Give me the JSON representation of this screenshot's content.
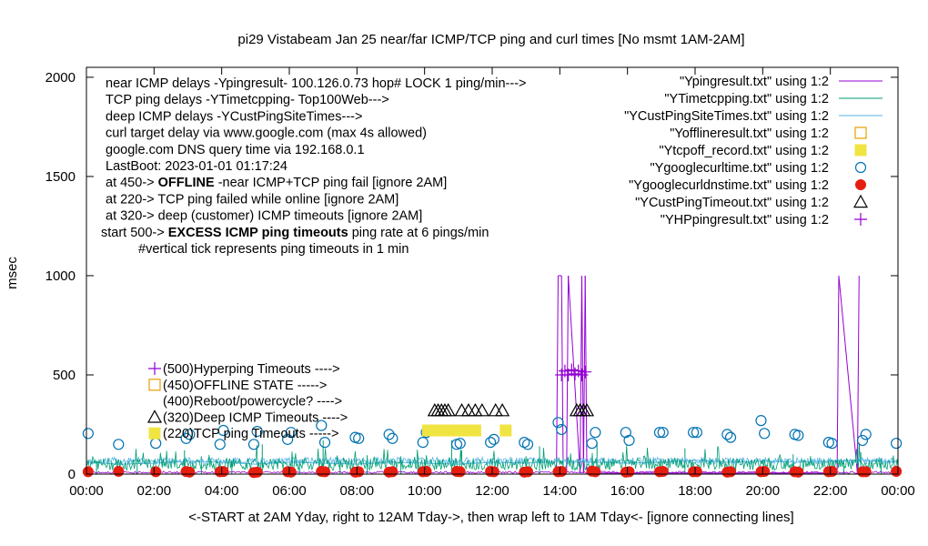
{
  "chart_data": {
    "type": "scatter",
    "title": "pi29 Vistabeam Jan 25  near/far ICMP/TCP ping and curl times [No msmt 1AM-2AM]",
    "xlabel": "<-START at 2AM Yday, right to 12AM Tday->, then wrap left to 1AM Tday<- [ignore connecting lines]",
    "ylabel": "msec",
    "xlim": [
      0,
      24
    ],
    "ylim": [
      0,
      2050
    ],
    "grid": false,
    "legend_position": "top-right",
    "x_ticks": [
      0,
      2,
      4,
      6,
      8,
      10,
      12,
      14,
      16,
      18,
      20,
      22,
      24
    ],
    "x_tick_labels": [
      "00:00",
      "02:00",
      "04:00",
      "06:00",
      "08:00",
      "10:00",
      "12:00",
      "14:00",
      "16:00",
      "18:00",
      "20:00",
      "22:00",
      "00:00"
    ],
    "y_ticks": [
      0,
      500,
      1000,
      1500,
      2000
    ],
    "y_tick_labels": [
      "0",
      "500",
      "1000",
      "1500",
      "2000"
    ],
    "notes": [
      {
        "text": "near ICMP delays -Ypingresult- 100.126.0.73 hop# LOCK 1 ping/min--->"
      },
      {
        "text": "TCP ping delays -YTimetcpping- Top100Web--->"
      },
      {
        "text": "deep ICMP delays -YCustPingSiteTimes--->"
      },
      {
        "text": "curl target delay via www.google.com (max 4s allowed)"
      },
      {
        "text": "google.com DNS query time via 192.168.0.1"
      },
      {
        "text": "LastBoot: 2023-01-01 01:17:24"
      },
      {
        "pre": "at 450-> ",
        "bold": "OFFLINE",
        "post": " -near ICMP+TCP ping fail [ignore 2AM]"
      },
      {
        "text": "at 220-> TCP ping failed while online [ignore 2AM]"
      },
      {
        "text": "at 320-> deep (customer) ICMP timeouts [ignore 2AM]"
      },
      {
        "pre": "start 500-> ",
        "bold": "EXCESS ICMP ping timeouts",
        "post": "  ping rate at 6 pings/min"
      },
      {
        "text": "#vertical tick represents ping timeouts in 1 min"
      }
    ],
    "markers_key": [
      {
        "label": "(500)Hyperping Timeouts ---->",
        "symbol": "plus",
        "color": "#9400d3"
      },
      {
        "label": "(450)OFFLINE STATE ----->",
        "symbol": "square-open",
        "color": "#e69f00"
      },
      {
        "label": "(400)Reboot/powercycle? ---->",
        "symbol": "none",
        "color": "#000000"
      },
      {
        "label": "(320)Deep ICMP Timeouts ---->",
        "symbol": "triangle-open",
        "color": "#000000"
      },
      {
        "label": "(220)TCP ping Timeouts ----->",
        "symbol": "square-filled",
        "color": "#f0e442"
      }
    ],
    "legend": [
      {
        "label": "\"Ypingresult.txt\" using 1:2",
        "style": "line",
        "color": "#9400d3"
      },
      {
        "label": "\"YTimetcpping.txt\" using 1:2",
        "style": "line",
        "color": "#009e73"
      },
      {
        "label": "\"YCustPingSiteTimes.txt\" using 1:2",
        "style": "line",
        "color": "#56b4e9"
      },
      {
        "label": "\"Yofflineresult.txt\" using 1:2",
        "style": "square-open",
        "color": "#e69f00"
      },
      {
        "label": "\"Ytcpoff_record.txt\" using 1:2",
        "style": "square-filled",
        "color": "#f0e442"
      },
      {
        "label": "\"Ygooglecurltime.txt\" using 1:2",
        "style": "circle-open",
        "color": "#0072b2"
      },
      {
        "label": "\"Ygooglecurldnstime.txt\" using 1:2",
        "style": "circle-filled",
        "color": "#e51e10"
      },
      {
        "label": "\"YCustPingTimeout.txt\" using 1:2",
        "style": "triangle-open",
        "color": "#000000"
      },
      {
        "label": "\"YHPpingresult.txt\" using 1:2",
        "style": "plus",
        "color": "#9400d3"
      }
    ],
    "series": [
      {
        "name": "\"Ygooglecurltime.txt\" using 1:2",
        "type": "scatter",
        "symbol": "circle-open",
        "color": "#0072b2",
        "x": [
          0.05,
          0.95,
          2.05,
          2.95,
          3.05,
          3.95,
          4.05,
          4.95,
          5.05,
          5.95,
          6.05,
          6.95,
          7.05,
          7.95,
          8.05,
          8.95,
          9.05,
          9.95,
          10.05,
          10.95,
          11.05,
          11.95,
          12.05,
          12.95,
          13.05,
          13.95,
          14.05,
          14.95,
          15.05,
          15.95,
          16.05,
          16.95,
          17.05,
          17.95,
          18.05,
          18.95,
          19.05,
          19.95,
          20.05,
          20.95,
          21.05,
          21.95,
          22.05,
          22.95,
          23.05,
          23.95
        ],
        "y": [
          205,
          150,
          155,
          180,
          200,
          150,
          220,
          150,
          215,
          175,
          210,
          245,
          160,
          185,
          180,
          200,
          180,
          160,
          210,
          150,
          155,
          160,
          175,
          160,
          150,
          260,
          225,
          155,
          210,
          210,
          170,
          210,
          210,
          210,
          210,
          200,
          185,
          270,
          205,
          200,
          195,
          160,
          155,
          170,
          200,
          155
        ]
      },
      {
        "name": "\"Ygooglecurldnstime.txt\" using 1:2",
        "type": "scatter",
        "symbol": "circle-filled",
        "color": "#e51e10",
        "x": [
          0.05,
          0.95,
          2.05,
          2.95,
          3.05,
          3.95,
          4.05,
          4.95,
          5.05,
          5.95,
          6.05,
          6.95,
          7.05,
          7.95,
          8.05,
          8.95,
          9.05,
          9.95,
          10.05,
          10.95,
          11.05,
          11.95,
          12.05,
          12.95,
          13.05,
          13.95,
          14.05,
          14.95,
          15.05,
          15.95,
          16.05,
          16.95,
          17.05,
          17.95,
          18.05,
          18.95,
          19.05,
          19.95,
          20.05,
          20.95,
          21.05,
          21.95,
          22.05,
          22.95,
          23.05,
          23.95
        ],
        "y": [
          12,
          14,
          12,
          13,
          10,
          12,
          13,
          8,
          10,
          12,
          10,
          14,
          12,
          10,
          12,
          10,
          12,
          12,
          14,
          14,
          12,
          14,
          12,
          10,
          12,
          12,
          14,
          15,
          12,
          10,
          12,
          12,
          14,
          12,
          12,
          10,
          12,
          12,
          14,
          12,
          10,
          12,
          14,
          12,
          12,
          14
        ]
      },
      {
        "name": "\"YCustPingTimeout.txt\" using 1:2",
        "type": "scatter",
        "symbol": "triangle-open",
        "color": "#000000",
        "x": [
          10.3,
          10.4,
          10.5,
          10.6,
          10.7,
          11.1,
          11.3,
          11.5,
          11.7,
          12.1,
          12.3,
          14.5,
          14.6,
          14.7,
          14.8
        ],
        "y": [
          320,
          320,
          320,
          320,
          320,
          320,
          320,
          320,
          320,
          320,
          320,
          320,
          320,
          320,
          320
        ]
      },
      {
        "name": "\"Ytcpoff_record.txt\" using 1:2",
        "type": "scatter",
        "symbol": "square-filled",
        "color": "#f0e442",
        "x": [
          10.1,
          10.3,
          10.5,
          10.7,
          10.9,
          11.1,
          11.3,
          11.5,
          12.4
        ],
        "y": [
          220,
          220,
          220,
          220,
          220,
          220,
          220,
          220,
          220
        ]
      },
      {
        "name": "\"YHPpingresult.txt\" using 1:2",
        "type": "scatter",
        "symbol": "plus",
        "color": "#9400d3",
        "x": [
          14.05,
          14.15,
          14.25,
          14.35,
          14.45,
          14.55,
          14.65,
          14.75
        ],
        "y": [
          500,
          520,
          500,
          525,
          505,
          520,
          500,
          515
        ]
      },
      {
        "name": "\"Ypingresult.txt\" using 1:2",
        "type": "line",
        "color": "#9400d3",
        "x": [
          13.9,
          13.95,
          14.05,
          14.1,
          14.2,
          14.25,
          14.6,
          14.65,
          14.7,
          14.75,
          14.8,
          14.85,
          22.2,
          22.25,
          22.8,
          22.85
        ],
        "y": [
          5,
          1000,
          1000,
          5,
          5,
          1000,
          5,
          1000,
          5,
          1000,
          5,
          5,
          5,
          1000,
          5,
          1000
        ]
      },
      {
        "name": "\"YTimetcpping.txt\" using 1:2",
        "type": "line",
        "color": "#009e73",
        "x": [
          0.3,
          1.5,
          2.9,
          3.4,
          4.3,
          5.2,
          6.3,
          7.0,
          7.5,
          8.3,
          9.3,
          9.8,
          10.8,
          11.1,
          13.0,
          13.4,
          14.1,
          15.1,
          17.2,
          17.7,
          19.2,
          20.9,
          22.4,
          22.9,
          23.5
        ],
        "y": [
          60,
          50,
          120,
          90,
          70,
          150,
          70,
          170,
          70,
          95,
          90,
          70,
          170,
          120,
          90,
          140,
          80,
          160,
          80,
          130,
          70,
          100,
          70,
          110,
          80
        ]
      },
      {
        "name": "\"YCustPingSiteTimes.txt\" using 1:2",
        "type": "line",
        "color": "#56b4e9",
        "x": [
          0.0,
          1.0,
          2.0,
          3.0,
          4.0,
          5.0,
          6.0,
          7.0,
          8.0,
          9.0,
          10.0,
          11.0,
          12.0,
          13.0,
          14.0,
          15.0,
          16.0,
          17.0,
          18.0,
          19.0,
          20.0,
          21.0,
          22.0,
          23.0,
          24.0
        ],
        "y": [
          60,
          50,
          55,
          65,
          60,
          50,
          60,
          55,
          50,
          60,
          55,
          50,
          60,
          55,
          65,
          60,
          55,
          60,
          70,
          60,
          65,
          60,
          65,
          70,
          60
        ]
      }
    ]
  }
}
